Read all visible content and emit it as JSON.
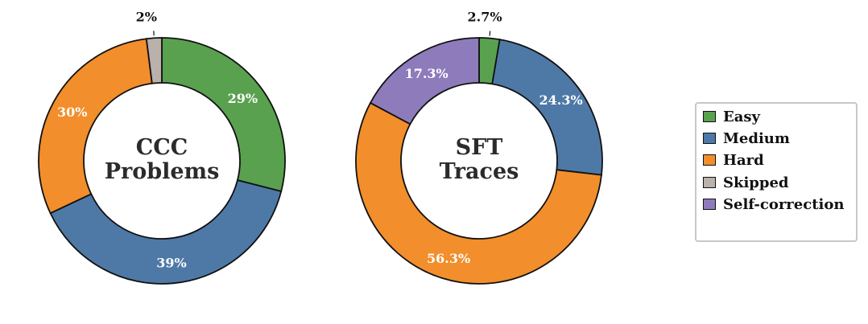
{
  "chart_data": [
    {
      "type": "pie",
      "center_label": [
        "CCC",
        "Problems"
      ],
      "slices": [
        {
          "category": "Easy",
          "value": 29,
          "label": "29%"
        },
        {
          "category": "Medium",
          "value": 39,
          "label": "39%"
        },
        {
          "category": "Hard",
          "value": 30,
          "label": "30%"
        },
        {
          "category": "Skipped",
          "value": 2,
          "label": "2%"
        }
      ]
    },
    {
      "type": "pie",
      "center_label": [
        "SFT",
        "Traces"
      ],
      "slices": [
        {
          "category": "Easy",
          "value": 2.7,
          "label": "2.7%"
        },
        {
          "category": "Medium",
          "value": 24.3,
          "label": "24.3%"
        },
        {
          "category": "Hard",
          "value": 56.3,
          "label": "56.3%"
        },
        {
          "category": "Self-correction",
          "value": 17.3,
          "label": "17.3%"
        }
      ]
    }
  ],
  "legend": {
    "placement": "right",
    "items": [
      {
        "label": "Easy",
        "color": "#59a14f"
      },
      {
        "label": "Medium",
        "color": "#4e79a7"
      },
      {
        "label": "Hard",
        "color": "#f28e2b"
      },
      {
        "label": "Skipped",
        "color": "#bab0ac"
      },
      {
        "label": "Self-correction",
        "color": "#8e7bbb"
      }
    ]
  }
}
